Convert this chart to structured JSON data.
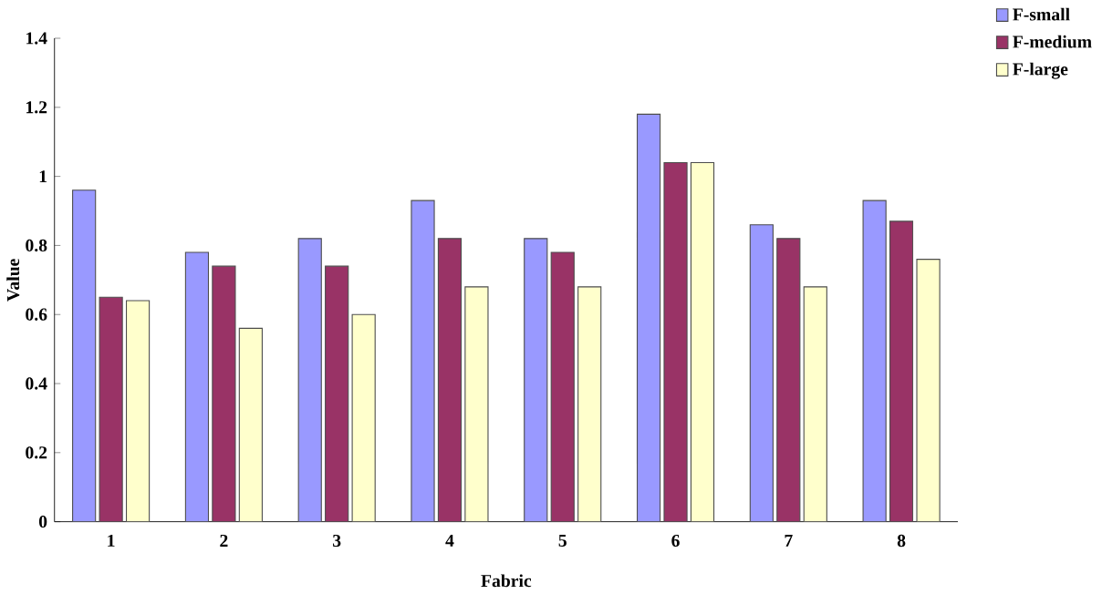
{
  "chart_data": {
    "type": "bar",
    "xlabel": "Fabric",
    "ylabel": "Value",
    "categories": [
      "1",
      "2",
      "3",
      "4",
      "5",
      "6",
      "7",
      "8"
    ],
    "series": [
      {
        "name": "F-small",
        "color": "#9999ff",
        "values": [
          0.96,
          0.78,
          0.82,
          0.93,
          0.82,
          1.18,
          0.86,
          0.93
        ]
      },
      {
        "name": "F-medium",
        "color": "#993366",
        "values": [
          0.65,
          0.74,
          0.74,
          0.82,
          0.78,
          1.04,
          0.82,
          0.87
        ]
      },
      {
        "name": "F-large",
        "color": "#ffffcc",
        "values": [
          0.64,
          0.56,
          0.6,
          0.68,
          0.68,
          1.04,
          0.68,
          0.76
        ]
      }
    ],
    "ylim": [
      0,
      1.4
    ],
    "yticks": [
      0,
      0.2,
      0.4,
      0.6,
      0.8,
      1,
      1.2,
      1.4
    ],
    "grid": false,
    "legend": "top right"
  }
}
